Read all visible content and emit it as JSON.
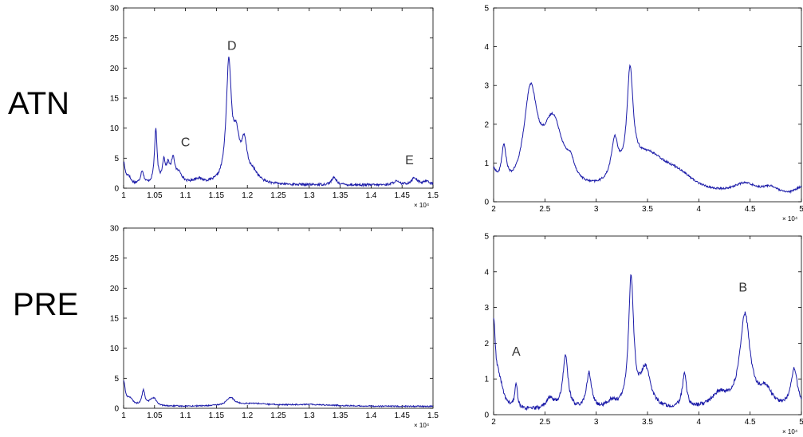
{
  "row_labels": {
    "top": "ATN",
    "bottom": "PRE"
  },
  "colors": {
    "line": "#1a1aa8",
    "axis": "#000000",
    "text": "#000000"
  },
  "chart_data": [
    {
      "id": "atn-left",
      "type": "line",
      "row": "ATN",
      "xlim": [
        1.0,
        1.5
      ],
      "ylim": [
        0,
        30
      ],
      "xticks": [
        1,
        1.05,
        1.1,
        1.15,
        1.2,
        1.25,
        1.3,
        1.35,
        1.4,
        1.45,
        1.5
      ],
      "xtick_labels": [
        "1",
        "1.05",
        "1.1",
        "1.15",
        "1.2",
        "1.25",
        "1.3",
        "1.35",
        "1.4",
        "1.45",
        "1.5"
      ],
      "yticks": [
        0,
        5,
        10,
        15,
        20,
        25,
        30
      ],
      "ytick_labels": [
        "0",
        "5",
        "10",
        "15",
        "20",
        "25",
        "30"
      ],
      "x_multiplier": "× 10⁴",
      "grid": false,
      "peaks": [
        {
          "x": 1.0,
          "y": 3.5,
          "w": 0.003
        },
        {
          "x": 1.008,
          "y": 1.2,
          "w": 0.004
        },
        {
          "x": 1.03,
          "y": 2.2,
          "w": 0.003
        },
        {
          "x": 1.052,
          "y": 9.0,
          "w": 0.0025
        },
        {
          "x": 1.065,
          "y": 3.5,
          "w": 0.003
        },
        {
          "x": 1.072,
          "y": 2.5,
          "w": 0.003
        },
        {
          "x": 1.08,
          "y": 3.8,
          "w": 0.004
        },
        {
          "x": 1.09,
          "y": 1.5,
          "w": 0.006
        },
        {
          "x": 1.12,
          "y": 0.8,
          "w": 0.01
        },
        {
          "x": 1.17,
          "y": 19.5,
          "w": 0.005
        },
        {
          "x": 1.182,
          "y": 6.5,
          "w": 0.006
        },
        {
          "x": 1.195,
          "y": 6.0,
          "w": 0.006
        },
        {
          "x": 1.21,
          "y": 1.5,
          "w": 0.01
        },
        {
          "x": 1.34,
          "y": 1.2,
          "w": 0.005
        },
        {
          "x": 1.44,
          "y": 0.6,
          "w": 0.006
        },
        {
          "x": 1.47,
          "y": 1.2,
          "w": 0.006
        },
        {
          "x": 1.49,
          "y": 0.7,
          "w": 0.005
        }
      ],
      "baseline": 0.5,
      "noise": 0.4,
      "annotations": [
        {
          "text": "C",
          "x": 1.1,
          "y": 7
        },
        {
          "text": "D",
          "x": 1.175,
          "y": 23
        },
        {
          "text": "E",
          "x": 1.462,
          "y": 4
        }
      ]
    },
    {
      "id": "atn-right",
      "type": "line",
      "row": "ATN",
      "xlim": [
        2.0,
        5.0
      ],
      "ylim": [
        0,
        5
      ],
      "xticks": [
        2,
        2.5,
        3,
        3.5,
        4,
        4.5,
        5
      ],
      "xtick_labels": [
        "2",
        "2.5",
        "3",
        "3.5",
        "4",
        "4.5",
        "5"
      ],
      "yticks": [
        0,
        1,
        2,
        3,
        4,
        5
      ],
      "ytick_labels": [
        "0",
        "1",
        "2",
        "3",
        "4",
        "5"
      ],
      "x_multiplier": "× 10⁴",
      "grid": false,
      "peaks": [
        {
          "x": 2.0,
          "y": 0.5,
          "w": 0.04
        },
        {
          "x": 2.1,
          "y": 1.0,
          "w": 0.03
        },
        {
          "x": 2.36,
          "y": 2.5,
          "w": 0.08
        },
        {
          "x": 2.58,
          "y": 1.8,
          "w": 0.12
        },
        {
          "x": 2.75,
          "y": 0.4,
          "w": 0.05
        },
        {
          "x": 3.18,
          "y": 1.0,
          "w": 0.04
        },
        {
          "x": 3.33,
          "y": 2.6,
          "w": 0.035
        },
        {
          "x": 3.5,
          "y": 1.0,
          "w": 0.25
        },
        {
          "x": 3.8,
          "y": 0.35,
          "w": 0.2
        },
        {
          "x": 4.45,
          "y": 0.3,
          "w": 0.15
        },
        {
          "x": 4.7,
          "y": 0.2,
          "w": 0.1
        },
        {
          "x": 5.0,
          "y": 0.25,
          "w": 0.08
        }
      ],
      "baseline": 0.05,
      "noise": 0.05,
      "annotations": []
    },
    {
      "id": "pre-left",
      "type": "line",
      "row": "PRE",
      "xlim": [
        1.0,
        1.5
      ],
      "ylim": [
        0,
        30
      ],
      "xticks": [
        1,
        1.05,
        1.1,
        1.15,
        1.2,
        1.25,
        1.3,
        1.35,
        1.4,
        1.45,
        1.5
      ],
      "xtick_labels": [
        "1",
        "1.05",
        "1.1",
        "1.15",
        "1.2",
        "1.25",
        "1.3",
        "1.35",
        "1.4",
        "1.45",
        "1.5"
      ],
      "yticks": [
        0,
        5,
        10,
        15,
        20,
        25,
        30
      ],
      "ytick_labels": [
        "0",
        "5",
        "10",
        "15",
        "20",
        "25",
        "30"
      ],
      "x_multiplier": "× 10⁴",
      "grid": false,
      "peaks": [
        {
          "x": 1.0,
          "y": 4.0,
          "w": 0.003
        },
        {
          "x": 1.01,
          "y": 1.2,
          "w": 0.006
        },
        {
          "x": 1.032,
          "y": 2.5,
          "w": 0.003
        },
        {
          "x": 1.045,
          "y": 0.8,
          "w": 0.005
        },
        {
          "x": 1.05,
          "y": 0.9,
          "w": 0.004
        },
        {
          "x": 1.173,
          "y": 1.3,
          "w": 0.008
        },
        {
          "x": 1.21,
          "y": 0.4,
          "w": 0.03
        },
        {
          "x": 1.3,
          "y": 0.3,
          "w": 0.05
        }
      ],
      "baseline": 0.3,
      "noise": 0.2,
      "annotations": []
    },
    {
      "id": "pre-right",
      "type": "line",
      "row": "PRE",
      "xlim": [
        2.0,
        5.0
      ],
      "ylim": [
        0,
        5
      ],
      "xticks": [
        2,
        2.5,
        3,
        3.5,
        4,
        4.5,
        5
      ],
      "xtick_labels": [
        "2",
        "2.5",
        "3",
        "3.5",
        "4",
        "4.5",
        "5"
      ],
      "yticks": [
        0,
        1,
        2,
        3,
        4,
        5
      ],
      "ytick_labels": [
        "0",
        "1",
        "2",
        "3",
        "4",
        "5"
      ],
      "x_multiplier": "× 10⁴",
      "grid": false,
      "peaks": [
        {
          "x": 2.0,
          "y": 2.2,
          "w": 0.02
        },
        {
          "x": 2.05,
          "y": 0.8,
          "w": 0.05
        },
        {
          "x": 2.22,
          "y": 0.7,
          "w": 0.015
        },
        {
          "x": 2.55,
          "y": 0.3,
          "w": 0.05
        },
        {
          "x": 2.7,
          "y": 1.5,
          "w": 0.03
        },
        {
          "x": 2.93,
          "y": 1.0,
          "w": 0.03
        },
        {
          "x": 3.15,
          "y": 0.2,
          "w": 0.05
        },
        {
          "x": 3.34,
          "y": 3.6,
          "w": 0.03
        },
        {
          "x": 3.48,
          "y": 1.1,
          "w": 0.06
        },
        {
          "x": 3.86,
          "y": 0.95,
          "w": 0.025
        },
        {
          "x": 4.2,
          "y": 0.4,
          "w": 0.1
        },
        {
          "x": 4.45,
          "y": 2.6,
          "w": 0.06
        },
        {
          "x": 4.65,
          "y": 0.5,
          "w": 0.08
        },
        {
          "x": 4.93,
          "y": 1.1,
          "w": 0.04
        }
      ],
      "baseline": 0.1,
      "noise": 0.1,
      "annotations": [
        {
          "text": "A",
          "x": 2.22,
          "y": 1.65
        },
        {
          "text": "B",
          "x": 4.43,
          "y": 3.45
        }
      ]
    }
  ]
}
